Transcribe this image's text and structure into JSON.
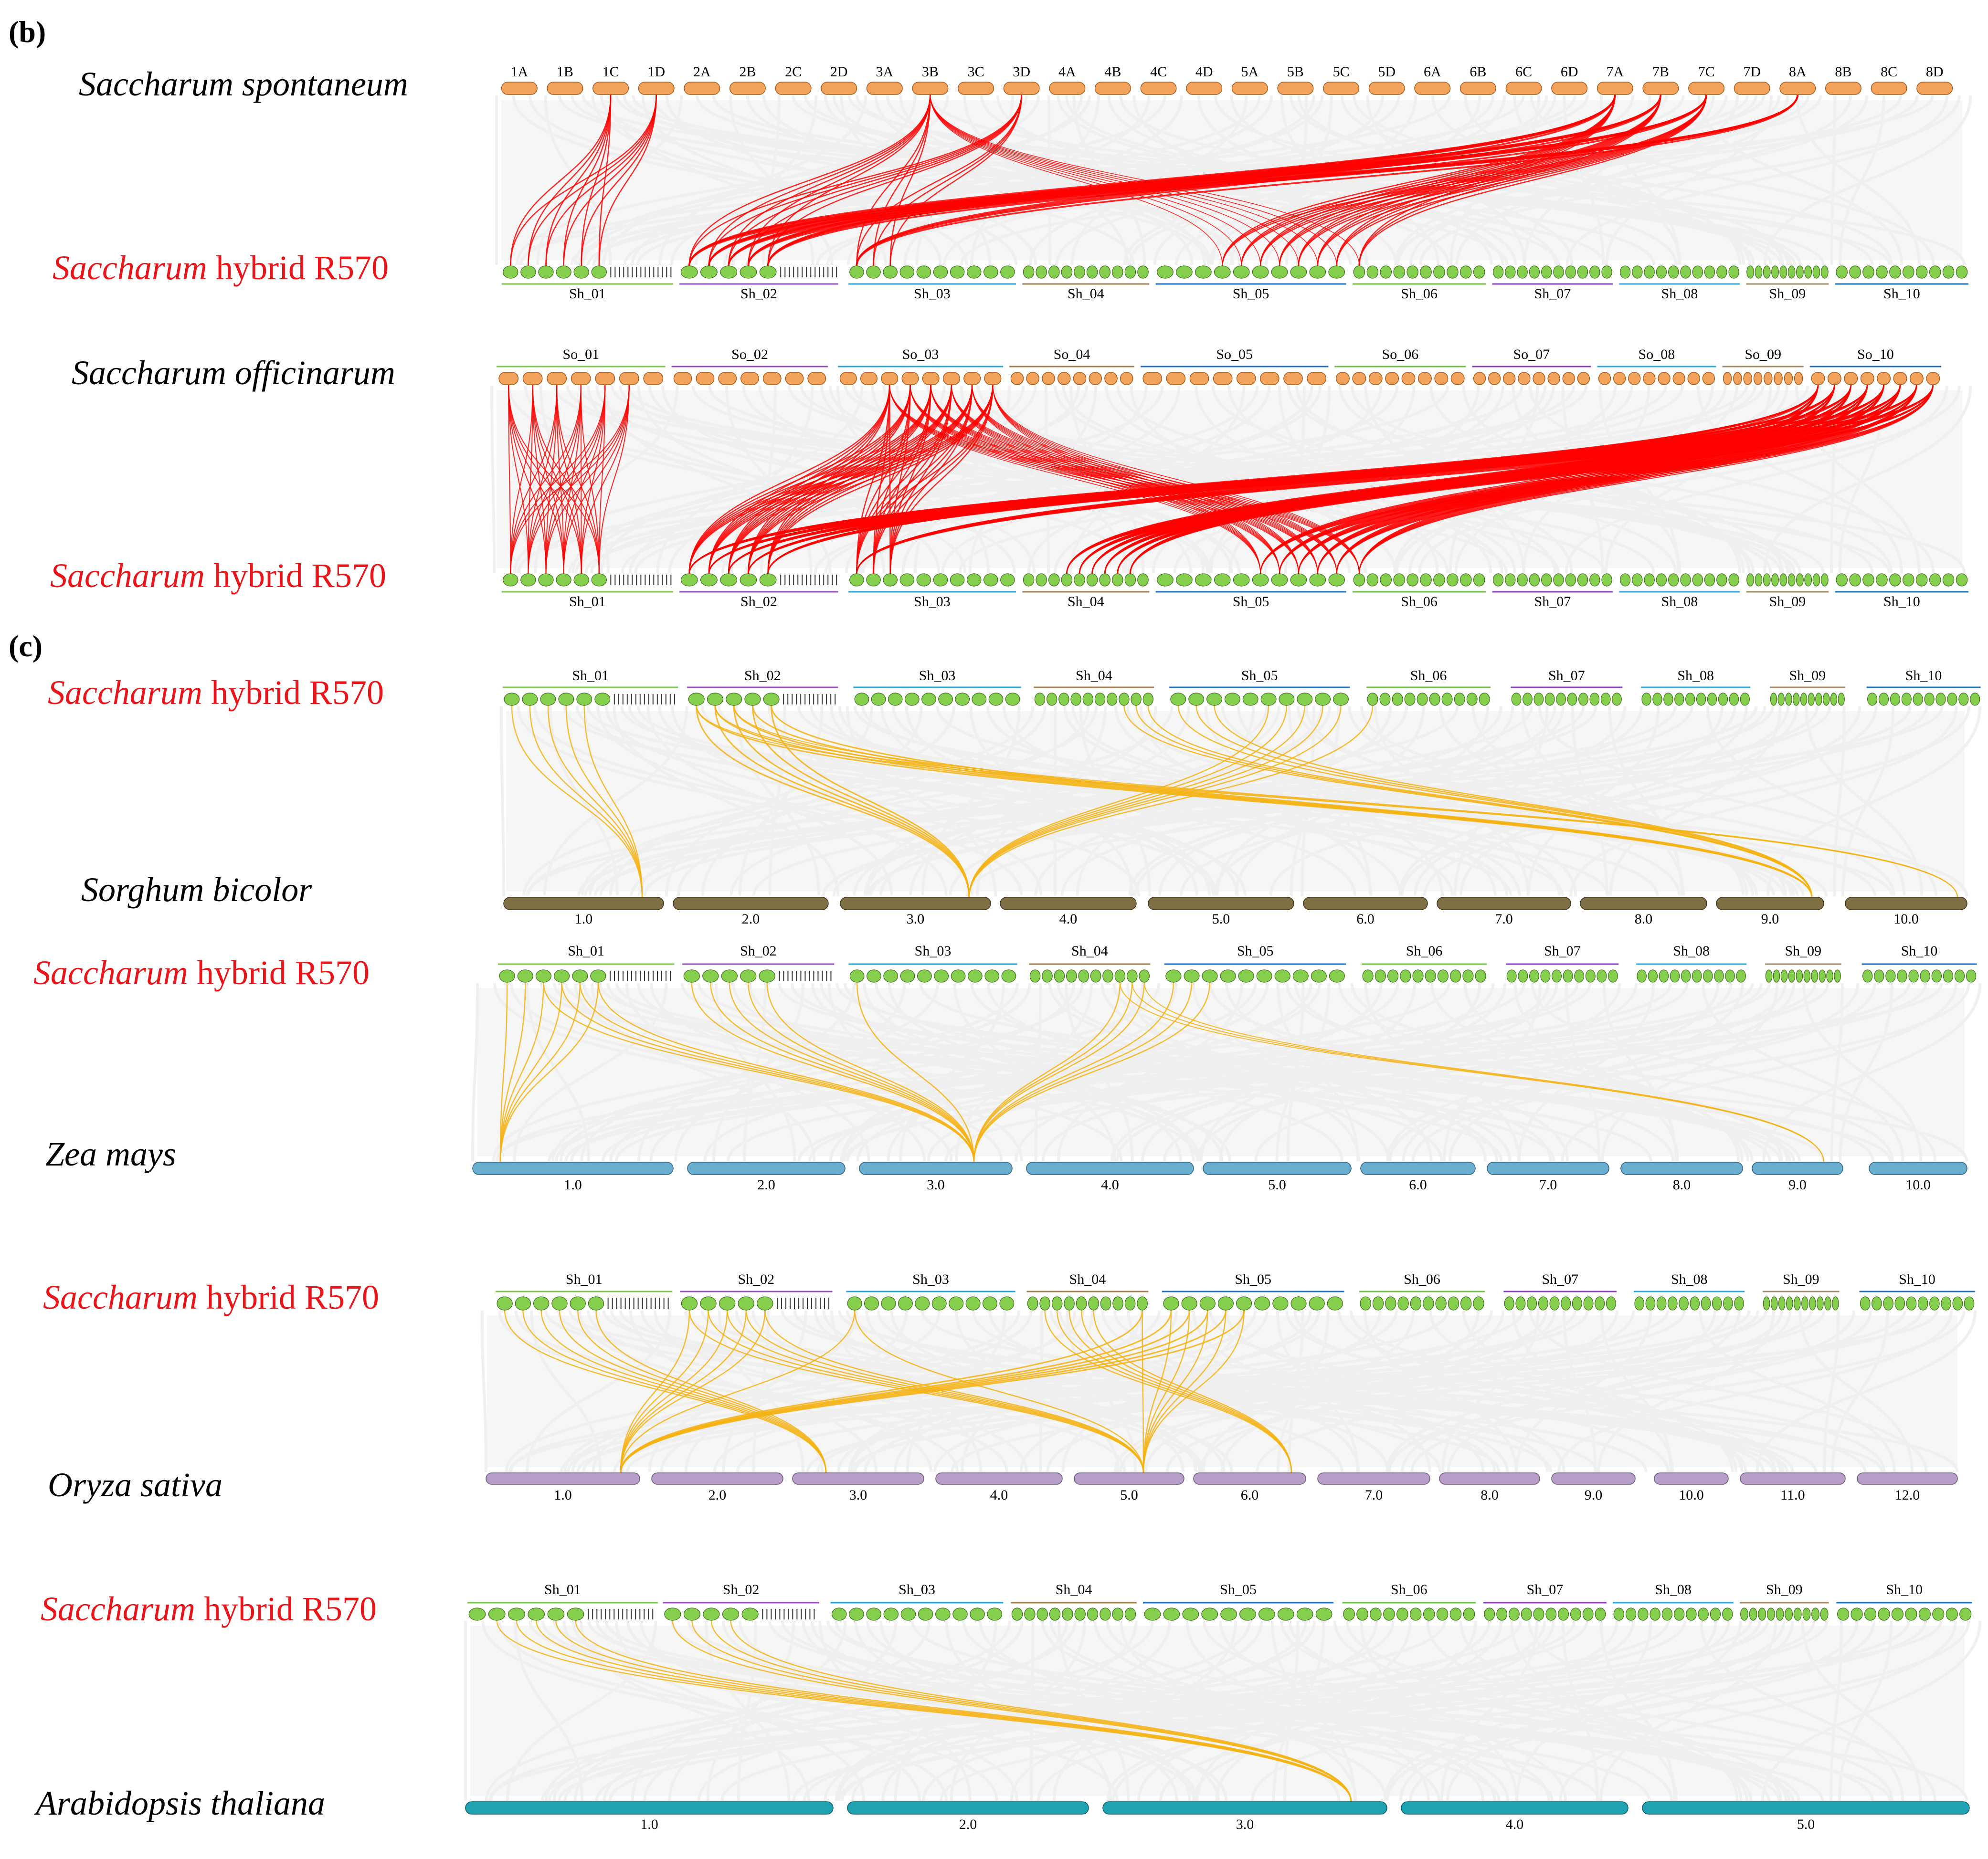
{
  "panels": [
    {
      "label": "(b)"
    },
    {
      "label": "(c)"
    }
  ],
  "colors": {
    "background_links": "#eeeeee",
    "red_links": "#ff0000",
    "orange_links": "#f5b211",
    "r570_chrom": "#86cf4e",
    "spont_chrom": "#f2a25a",
    "sorghum_chrom": "#7f6f45",
    "maize_chrom": "#6aafcf",
    "rice_chrom": "#b79fc9",
    "arabidopsis_chrom": "#1fa2b1",
    "group_lines": [
      "#7dc64b",
      "#9b4fc1",
      "#27a3d8",
      "#a37e4f",
      "#1f73c7",
      "#6dc243",
      "#8f3fc0",
      "#2ea8df",
      "#a48a6a",
      "#1f6fbf"
    ]
  },
  "rows": {
    "spontaneum": {
      "name": "Saccharum spontaneum",
      "chromosomes": [
        "1A",
        "1B",
        "1C",
        "1D",
        "2A",
        "2B",
        "2C",
        "2D",
        "3A",
        "3B",
        "3C",
        "3D",
        "4A",
        "4B",
        "4C",
        "4D",
        "5A",
        "5B",
        "5C",
        "5D",
        "6A",
        "6B",
        "6C",
        "6D",
        "7A",
        "7B",
        "7C",
        "7D",
        "8A",
        "8B",
        "8C",
        "8D"
      ]
    },
    "r570_b1": {
      "name_italic": "Saccharum",
      "name_rest": " hybrid R570",
      "groups": [
        "Sh_01",
        "Sh_02",
        "Sh_03",
        "Sh_04",
        "Sh_05",
        "Sh_06",
        "Sh_07",
        "Sh_08",
        "Sh_09",
        "Sh_10"
      ]
    },
    "officinarum": {
      "name": "Saccharum officinarum",
      "groups": [
        "So_01",
        "So_02",
        "So_03",
        "So_04",
        "So_05",
        "So_06",
        "So_07",
        "So_08",
        "So_09",
        "So_10"
      ]
    },
    "r570_b2": {
      "name_italic": "Saccharum",
      "name_rest": " hybrid R570",
      "groups": [
        "Sh_01",
        "Sh_02",
        "Sh_03",
        "Sh_04",
        "Sh_05",
        "Sh_06",
        "Sh_07",
        "Sh_08",
        "Sh_09",
        "Sh_10"
      ]
    },
    "r570_c1": {
      "name_italic": "Saccharum",
      "name_rest": " hybrid R570",
      "groups": [
        "Sh_01",
        "Sh_02",
        "Sh_03",
        "Sh_04",
        "Sh_05",
        "Sh_06",
        "Sh_07",
        "Sh_08",
        "Sh_09",
        "Sh_10"
      ]
    },
    "sorghum": {
      "name": "Sorghum bicolor",
      "chromosomes": [
        "1.0",
        "2.0",
        "3.0",
        "4.0",
        "5.0",
        "6.0",
        "7.0",
        "8.0",
        "9.0",
        "10.0"
      ]
    },
    "r570_c2": {
      "name_italic": "Saccharum",
      "name_rest": " hybrid R570",
      "groups": [
        "Sh_01",
        "Sh_02",
        "Sh_03",
        "Sh_04",
        "Sh_05",
        "Sh_06",
        "Sh_07",
        "Sh_08",
        "Sh_09",
        "Sh_10"
      ]
    },
    "maize": {
      "name": "Zea mays",
      "chromosomes": [
        "1.0",
        "2.0",
        "3.0",
        "4.0",
        "5.0",
        "6.0",
        "7.0",
        "8.0",
        "9.0",
        "10.0"
      ]
    },
    "r570_c3": {
      "name_italic": "Saccharum",
      "name_rest": " hybrid R570",
      "groups": [
        "Sh_01",
        "Sh_02",
        "Sh_03",
        "Sh_04",
        "Sh_05",
        "Sh_06",
        "Sh_07",
        "Sh_08",
        "Sh_09",
        "Sh_10"
      ]
    },
    "rice": {
      "name": "Oryza sativa",
      "chromosomes": [
        "1.0",
        "2.0",
        "3.0",
        "4.0",
        "5.0",
        "6.0",
        "7.0",
        "8.0",
        "9.0",
        "10.0",
        "11.0",
        "12.0"
      ]
    },
    "r570_c4": {
      "name_italic": "Saccharum",
      "name_rest": " hybrid R570",
      "groups": [
        "Sh_01",
        "Sh_02",
        "Sh_03",
        "Sh_04",
        "Sh_05",
        "Sh_06",
        "Sh_07",
        "Sh_08",
        "Sh_09",
        "Sh_10"
      ]
    },
    "arabidopsis": {
      "name": "Arabidopsis thaliana",
      "chromosomes": [
        "1.0",
        "2.0",
        "3.0",
        "4.0",
        "5.0"
      ]
    }
  }
}
